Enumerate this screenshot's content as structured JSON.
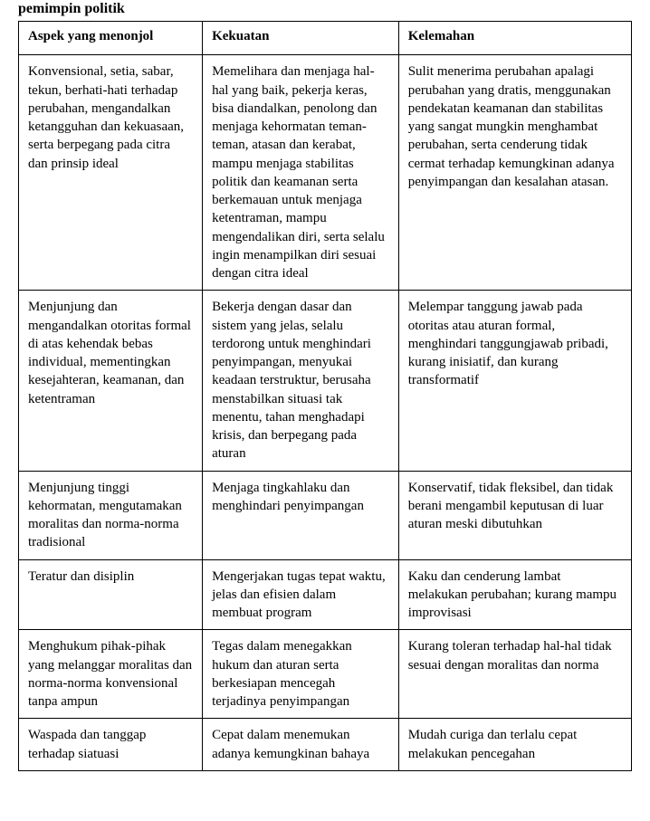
{
  "title_fragment_left": "pemimpin politik",
  "title_fragment_right": "",
  "table": {
    "headers": [
      "Aspek yang menonjol",
      "Kekuatan",
      "Kelemahan"
    ],
    "rows": [
      [
        "Konvensional, setia, sabar, tekun, berhati-hati terhadap perubahan, mengandalkan ketangguhan dan kekuasaan, serta berpegang pada citra dan prinsip ideal",
        "Memelihara dan menjaga hal-hal yang baik, pekerja keras, bisa diandalkan, penolong dan menjaga kehormatan teman-teman, atasan dan kerabat, mampu menjaga stabilitas politik dan keamanan serta berkemauan untuk menjaga ketentraman, mampu mengendalikan diri, serta selalu ingin menampilkan diri sesuai dengan citra ideal",
        "Sulit menerima perubahan apalagi perubahan yang dratis, menggunakan pendekatan keamanan dan stabilitas yang sangat mungkin menghambat perubahan, serta cenderung tidak cermat terhadap kemungkinan adanya penyimpangan dan kesalahan atasan."
      ],
      [
        "Menjunjung dan mengandalkan otoritas formal di atas kehendak bebas individual, mementingkan kesejahteran, keamanan, dan ketentraman",
        "Bekerja dengan dasar dan sistem yang jelas, selalu terdorong untuk menghindari penyimpangan, menyukai keadaan terstruktur, berusaha menstabilkan situasi tak menentu, tahan menghadapi krisis, dan berpegang pada aturan",
        "Melempar tanggung jawab pada otoritas atau aturan formal, menghindari tanggungjawab pribadi, kurang inisiatif, dan kurang transformatif"
      ],
      [
        "Menjunjung tinggi kehormatan, mengutamakan moralitas dan norma-norma tradisional",
        "Menjaga tingkahlaku dan menghindari penyimpangan",
        "Konservatif, tidak fleksibel, dan tidak berani mengambil keputusan di luar aturan meski dibutuhkan"
      ],
      [
        "Teratur dan disiplin",
        "Mengerjakan tugas tepat waktu, jelas dan efisien dalam membuat program",
        "Kaku dan cenderung lambat melakukan perubahan; kurang mampu improvisasi"
      ],
      [
        "Menghukum pihak-pihak yang melanggar moralitas dan norma-norma konvensional tanpa ampun",
        "Tegas dalam menegakkan hukum dan aturan serta berkesiapan mencegah terjadinya penyimpangan",
        "Kurang toleran terhadap hal-hal tidak sesuai dengan moralitas dan norma"
      ],
      [
        "Waspada dan tanggap terhadap siatuasi",
        "Cepat dalam menemukan adanya kemungkinan bahaya",
        "Mudah curiga dan terlalu cepat melakukan pencegahan"
      ]
    ]
  }
}
